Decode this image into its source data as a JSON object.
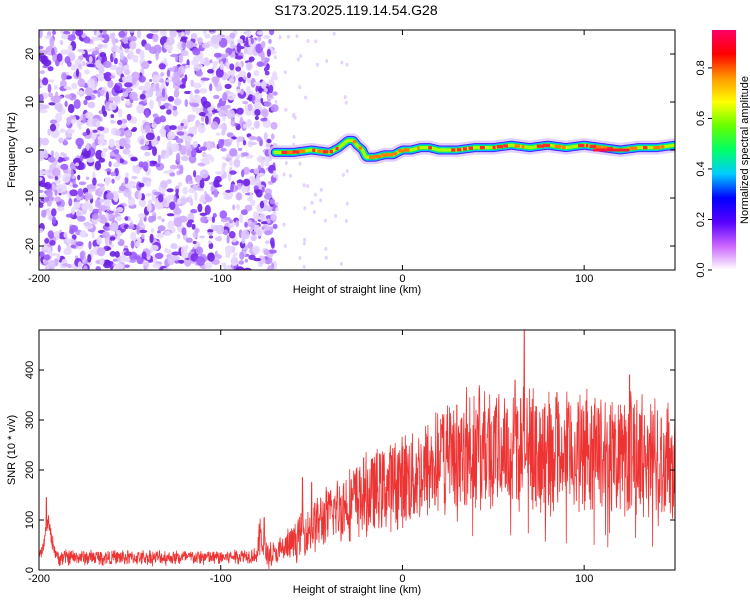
{
  "title": "S173.2025.119.14.54.G28",
  "chart_data": [
    {
      "type": "heatmap",
      "xlabel": "Height of straight line (km)",
      "ylabel": "Frequency (Hz)",
      "xlim": [
        -200,
        150
      ],
      "ylim": [
        -25,
        25
      ],
      "xticks": [
        "-200",
        "-100",
        "0",
        "100"
      ],
      "yticks": [
        "-20",
        "-10",
        "0",
        "10",
        "20"
      ],
      "noise_region": {
        "x": [
          -200,
          -70
        ],
        "y": [
          -25,
          25
        ]
      },
      "ridge": {
        "x": [
          -70,
          -60,
          -50,
          -40,
          -35,
          -30,
          -27,
          -25,
          -22,
          -20,
          -15,
          -10,
          -5,
          0,
          5,
          10,
          15,
          20,
          30,
          40,
          50,
          60,
          70,
          80,
          90,
          100,
          110,
          120,
          130,
          140,
          150
        ],
        "y": [
          -0.5,
          -0.5,
          0,
          -0.5,
          0.5,
          2,
          2,
          1,
          0,
          -1.5,
          -1.5,
          -1,
          -1,
          0,
          0,
          0.5,
          0.5,
          0,
          0,
          0.5,
          0.5,
          1,
          0.5,
          1,
          0.5,
          1,
          0.5,
          0,
          0.5,
          0.5,
          1
        ]
      },
      "colorbar": {
        "label": "Normalized spectral amplitude",
        "range": [
          0,
          0.95
        ],
        "ticks": [
          "0.0",
          "0.2",
          "0.4",
          "0.6",
          "0.8"
        ],
        "colors": [
          "#ffffff",
          "#cc66ff",
          "#5500ff",
          "#0000ff",
          "#00ccff",
          "#00ff66",
          "#66ff00",
          "#ffff00",
          "#ff9900",
          "#ff0000",
          "#ff0066"
        ]
      }
    },
    {
      "type": "line",
      "xlabel": "Height of straight line (km)",
      "ylabel": "SNR (10 * v/v)",
      "xlim": [
        -200,
        150
      ],
      "ylim": [
        0,
        480
      ],
      "xticks": [
        "-200",
        "-100",
        "0",
        "100"
      ],
      "yticks": [
        "0",
        "100",
        "200",
        "300",
        "400"
      ],
      "color": "#ee3333",
      "envelope": {
        "x": [
          -200,
          -198,
          -195,
          -193,
          -190,
          -180,
          -150,
          -120,
          -100,
          -90,
          -80,
          -78,
          -76,
          -74,
          -70,
          -60,
          -50,
          -40,
          -30,
          -20,
          -10,
          0,
          10,
          20,
          30,
          40,
          50,
          60,
          67,
          70,
          80,
          90,
          100,
          110,
          120,
          130,
          140,
          150
        ],
        "y": [
          25,
          40,
          100,
          60,
          25,
          25,
          25,
          25,
          25,
          28,
          30,
          75,
          40,
          30,
          30,
          55,
          85,
          110,
          135,
          150,
          165,
          180,
          190,
          215,
          240,
          245,
          240,
          240,
          250,
          240,
          235,
          235,
          235,
          235,
          230,
          230,
          225,
          215
        ]
      },
      "spikes": [
        {
          "x": -196,
          "y": 145
        },
        {
          "x": -76,
          "y": 105
        },
        {
          "x": 67,
          "y": 480
        },
        {
          "x": 62,
          "y": 380
        },
        {
          "x": 125,
          "y": 390
        },
        {
          "x": 85,
          "y": 355
        },
        {
          "x": 30,
          "y": 330
        },
        {
          "x": -55,
          "y": 185
        },
        {
          "x": -50,
          "y": 175
        }
      ]
    }
  ]
}
